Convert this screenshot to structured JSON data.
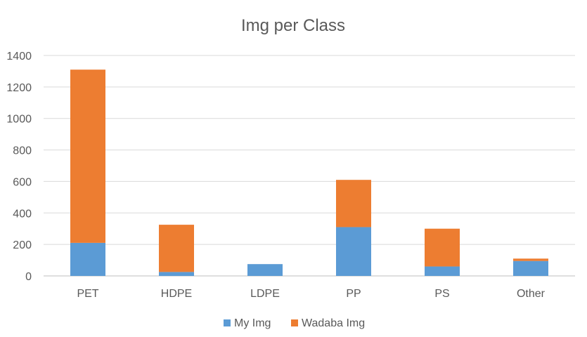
{
  "chart_data": {
    "type": "bar",
    "stacked": true,
    "title": "Img per Class",
    "xlabel": "",
    "ylabel": "",
    "categories": [
      "PET",
      "HDPE",
      "LDPE",
      "PP",
      "PS",
      "Other"
    ],
    "series": [
      {
        "name": "My Img",
        "color": "#5b9bd5",
        "values": [
          210,
          25,
          75,
          310,
          60,
          95
        ]
      },
      {
        "name": "Wadaba Img",
        "color": "#ed7d31",
        "values": [
          1100,
          300,
          0,
          300,
          240,
          15
        ]
      }
    ],
    "ylim": [
      0,
      1400
    ],
    "yticks": [
      "0",
      "200",
      "400",
      "600",
      "800",
      "1000",
      "1200",
      "1400"
    ],
    "grid": true,
    "legend_position": "bottom"
  }
}
